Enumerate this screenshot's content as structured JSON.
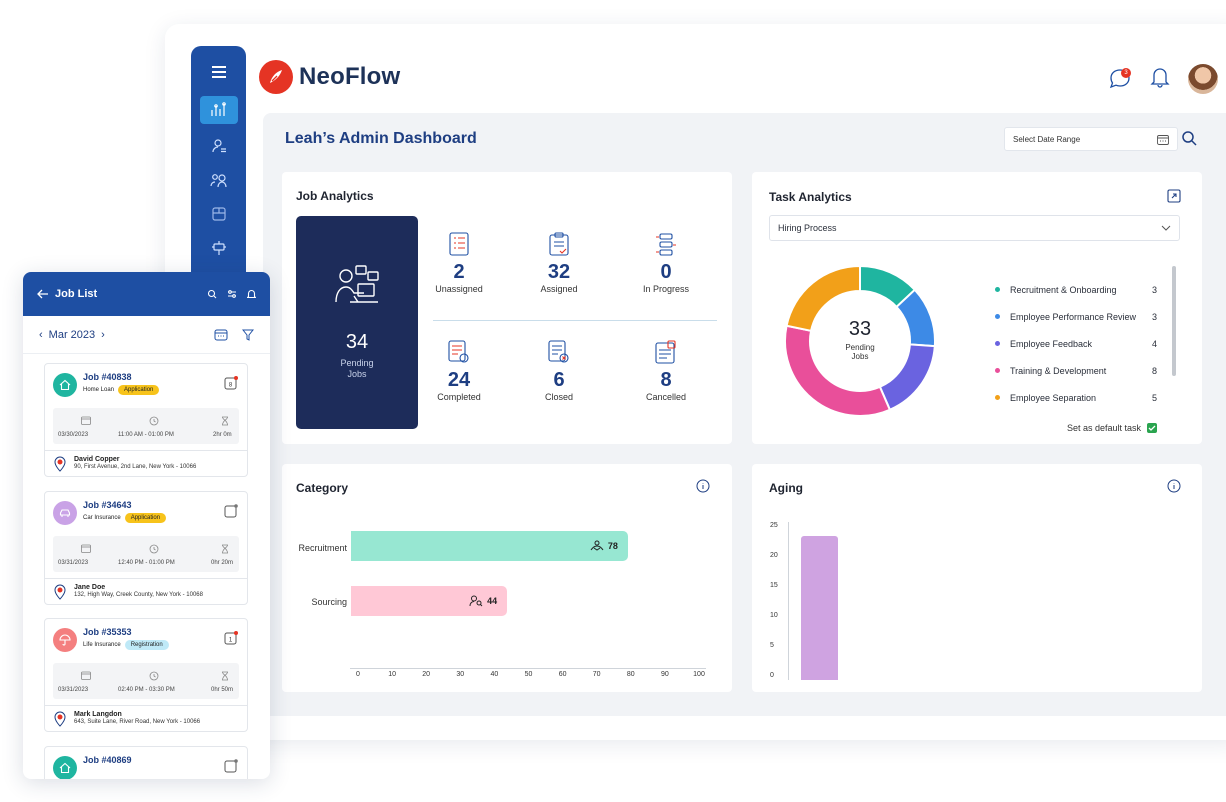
{
  "app": {
    "brand": "NeoFlow",
    "notifications_count": "3"
  },
  "dashboard": {
    "title": "Leah’s Admin Dashboard",
    "date_range_placeholder": "Select Date Range"
  },
  "job_analytics": {
    "title": "Job Analytics",
    "pending": {
      "value": "34",
      "label_line1": "Pending",
      "label_line2": "Jobs"
    },
    "stats": [
      {
        "value": "2",
        "label": "Unassigned"
      },
      {
        "value": "32",
        "label": "Assigned"
      },
      {
        "value": "0",
        "label": "In Progress"
      },
      {
        "value": "24",
        "label": "Completed"
      },
      {
        "value": "6",
        "label": "Closed"
      },
      {
        "value": "8",
        "label": "Cancelled"
      }
    ]
  },
  "task_analytics": {
    "title": "Task Analytics",
    "selected_process": "Hiring Process",
    "center_value": "33",
    "center_label_line1": "Pending",
    "center_label_line2": "Jobs",
    "legend": [
      {
        "label": "Recruitment & Onboarding",
        "value": "3",
        "color": "#1fb5a0"
      },
      {
        "label": "Employee Performance Review",
        "value": "3",
        "color": "#3d8ae6"
      },
      {
        "label": "Employee Feedback",
        "value": "4",
        "color": "#6a63e0"
      },
      {
        "label": "Training & Development",
        "value": "8",
        "color": "#e94f9a"
      },
      {
        "label": "Employee Separation",
        "value": "5",
        "color": "#f2a019"
      }
    ],
    "set_default_label": "Set as default task"
  },
  "category": {
    "title": "Category",
    "bars": [
      {
        "label": "Recruitment",
        "value": 78,
        "value_label": "78",
        "color": "#97e7d2"
      },
      {
        "label": "Sourcing",
        "value": 44,
        "value_label": "44",
        "color": "#ffc8d6"
      }
    ],
    "x_ticks": [
      "0",
      "10",
      "20",
      "30",
      "40",
      "50",
      "60",
      "70",
      "80",
      "90",
      "100"
    ]
  },
  "aging": {
    "title": "Aging",
    "y_ticks": [
      "25",
      "20",
      "15",
      "10",
      "5",
      "0"
    ],
    "bar_value": 24,
    "bar_color": "#cfa3e1"
  },
  "job_list": {
    "title": "Job List",
    "month": "Mar 2023",
    "jobs": [
      {
        "id": "Job #40838",
        "type": "Home Loan",
        "status": "Application",
        "date": "03/30/2023",
        "time": "11:00 AM - 01:00 PM",
        "duration": "2hr 0m",
        "name": "David Copper",
        "address": "90, First Avenue, 2nd Lane,  New York - 10066",
        "badge": "8"
      },
      {
        "id": "Job #34643",
        "type": "Car Insurance",
        "status": "Application",
        "date": "03/31/2023",
        "time": "12:40 PM - 01:00 PM",
        "duration": "0hr 20m",
        "name": "Jane Doe",
        "address": "132, High Way, Creek County, New York - 10068",
        "badge": ""
      },
      {
        "id": "Job #35353",
        "type": "Life Insurance",
        "status": "Registration",
        "date": "03/31/2023",
        "time": "02:40 PM - 03:30 PM",
        "duration": "0hr 50m",
        "name": "Mark Langdon",
        "address": "643, Suite Lane, River Road, New York - 10066",
        "badge": "1"
      },
      {
        "id": "Job #40869"
      }
    ]
  }
}
